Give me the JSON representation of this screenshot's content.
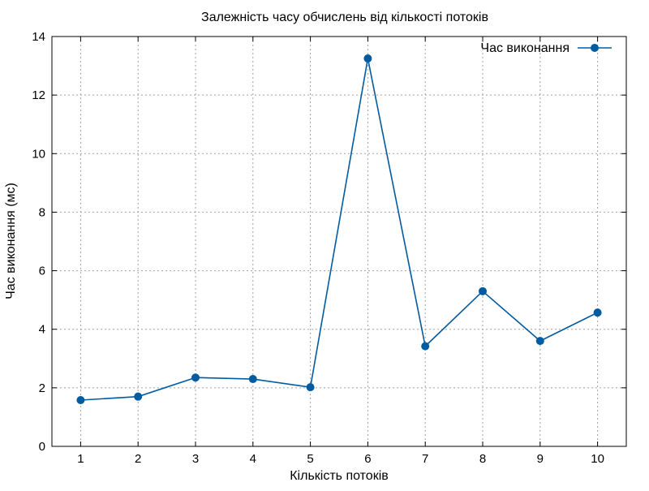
{
  "chart_data": {
    "type": "line",
    "title": "Залежність часу обчислень від кількості потоків",
    "xlabel": "Кількість потоків",
    "ylabel": "Час виконання (мс)",
    "x": [
      1,
      2,
      3,
      4,
      5,
      6,
      7,
      8,
      9,
      10
    ],
    "xlim": [
      0.5,
      10.5
    ],
    "ylim": [
      0,
      14
    ],
    "xticks": [
      1,
      2,
      3,
      4,
      5,
      6,
      7,
      8,
      9,
      10
    ],
    "yticks": [
      0,
      2,
      4,
      6,
      8,
      10,
      12,
      14
    ],
    "grid": true,
    "legend_position": "top-right",
    "series": [
      {
        "name": "Час виконання",
        "color": "#005ba0",
        "marker": "circle",
        "values": [
          1.58,
          1.7,
          2.35,
          2.3,
          2.02,
          13.25,
          3.42,
          5.3,
          3.6,
          4.57
        ]
      }
    ]
  }
}
